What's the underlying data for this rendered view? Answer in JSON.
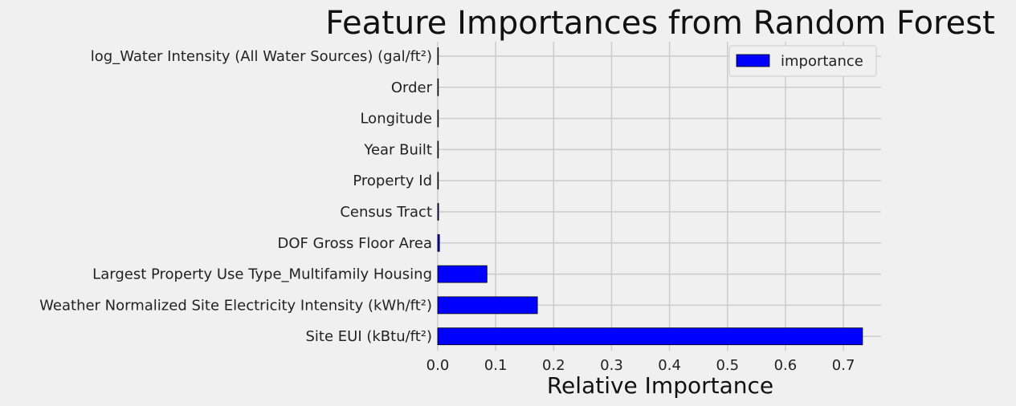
{
  "chart_data": {
    "type": "bar",
    "orientation": "horizontal",
    "title": "Feature Importances from Random Forest",
    "xlabel": "Relative Importance",
    "ylabel": "",
    "xlim": [
      0,
      0.765
    ],
    "xticks": [
      "0.0",
      "0.1",
      "0.2",
      "0.3",
      "0.4",
      "0.5",
      "0.6",
      "0.7"
    ],
    "grid": true,
    "legend_position": "top-right",
    "categories": [
      "log_Water Intensity (All Water Sources) (gal/ft²)",
      "Order",
      "Longitude",
      "Year Built",
      "Property Id",
      "Census Tract",
      "DOF Gross Floor Area",
      "Largest Property Use Type_Multifamily Housing",
      "Weather Normalized Site Electricity Intensity (kWh/ft²)",
      "Site EUI (kBtu/ft²)"
    ],
    "series": [
      {
        "name": "importance",
        "color": "#0000ff",
        "values": [
          0.0003,
          0.0004,
          0.0005,
          0.0006,
          0.0008,
          0.0015,
          0.003,
          0.085,
          0.172,
          0.733
        ]
      }
    ]
  }
}
